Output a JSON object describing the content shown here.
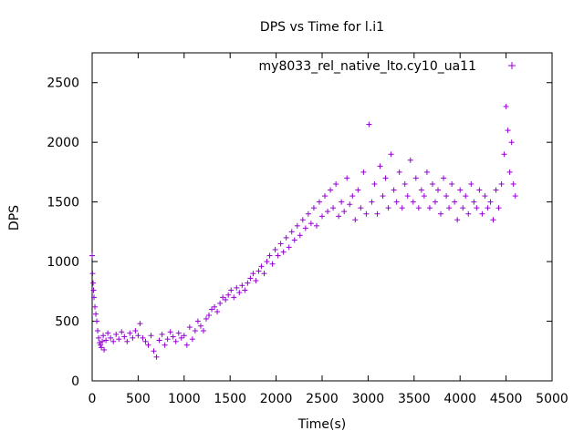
{
  "chart_data": {
    "type": "scatter",
    "title": "DPS vs Time for l.i1",
    "xlabel": "Time(s)",
    "ylabel": "DPS",
    "xlim": [
      0,
      5000
    ],
    "ylim": [
      0,
      2750
    ],
    "x_ticks": [
      0,
      500,
      1000,
      1500,
      2000,
      2500,
      3000,
      3500,
      4000,
      4500,
      5000
    ],
    "y_ticks": [
      0,
      500,
      1000,
      1500,
      2000,
      2500
    ],
    "x_tick_labels": [
      "0",
      "500",
      "1000",
      "1500",
      "2000",
      "2500",
      "3000",
      "3500",
      "4000",
      "4500",
      "5000"
    ],
    "y_tick_labels": [
      "0",
      "500",
      "1000",
      "1500",
      "2000",
      "2500"
    ],
    "grid": false,
    "legend_position": "top-right",
    "marker": "+",
    "series": [
      {
        "name": "my8033_rel_native_lto.cy10_ua11",
        "color": "#9400d3",
        "points": [
          [
            0,
            1050
          ],
          [
            5,
            900
          ],
          [
            10,
            820
          ],
          [
            15,
            760
          ],
          [
            20,
            700
          ],
          [
            30,
            620
          ],
          [
            40,
            560
          ],
          [
            50,
            500
          ],
          [
            60,
            420
          ],
          [
            70,
            360
          ],
          [
            80,
            320
          ],
          [
            90,
            300
          ],
          [
            100,
            280
          ],
          [
            110,
            330
          ],
          [
            120,
            380
          ],
          [
            130,
            260
          ],
          [
            150,
            340
          ],
          [
            170,
            400
          ],
          [
            200,
            360
          ],
          [
            230,
            330
          ],
          [
            260,
            390
          ],
          [
            290,
            350
          ],
          [
            320,
            410
          ],
          [
            350,
            370
          ],
          [
            380,
            330
          ],
          [
            410,
            400
          ],
          [
            440,
            360
          ],
          [
            470,
            420
          ],
          [
            500,
            380
          ],
          [
            520,
            480
          ],
          [
            550,
            360
          ],
          [
            580,
            330
          ],
          [
            610,
            300
          ],
          [
            640,
            380
          ],
          [
            670,
            250
          ],
          [
            700,
            200
          ],
          [
            730,
            340
          ],
          [
            760,
            390
          ],
          [
            790,
            300
          ],
          [
            820,
            350
          ],
          [
            850,
            410
          ],
          [
            880,
            370
          ],
          [
            910,
            330
          ],
          [
            940,
            400
          ],
          [
            970,
            360
          ],
          [
            1000,
            380
          ],
          [
            1030,
            300
          ],
          [
            1060,
            450
          ],
          [
            1090,
            350
          ],
          [
            1120,
            420
          ],
          [
            1150,
            500
          ],
          [
            1180,
            460
          ],
          [
            1210,
            420
          ],
          [
            1240,
            520
          ],
          [
            1270,
            550
          ],
          [
            1300,
            600
          ],
          [
            1330,
            620
          ],
          [
            1360,
            580
          ],
          [
            1390,
            650
          ],
          [
            1420,
            700
          ],
          [
            1450,
            680
          ],
          [
            1480,
            720
          ],
          [
            1510,
            760
          ],
          [
            1540,
            700
          ],
          [
            1570,
            780
          ],
          [
            1600,
            740
          ],
          [
            1630,
            800
          ],
          [
            1660,
            760
          ],
          [
            1690,
            820
          ],
          [
            1720,
            860
          ],
          [
            1750,
            900
          ],
          [
            1780,
            840
          ],
          [
            1810,
            920
          ],
          [
            1840,
            960
          ],
          [
            1870,
            900
          ],
          [
            1900,
            1000
          ],
          [
            1930,
            1050
          ],
          [
            1960,
            980
          ],
          [
            1990,
            1100
          ],
          [
            2020,
            1050
          ],
          [
            2050,
            1150
          ],
          [
            2080,
            1080
          ],
          [
            2110,
            1200
          ],
          [
            2140,
            1120
          ],
          [
            2170,
            1250
          ],
          [
            2200,
            1180
          ],
          [
            2230,
            1300
          ],
          [
            2260,
            1220
          ],
          [
            2290,
            1350
          ],
          [
            2320,
            1280
          ],
          [
            2350,
            1400
          ],
          [
            2380,
            1320
          ],
          [
            2410,
            1450
          ],
          [
            2440,
            1300
          ],
          [
            2470,
            1500
          ],
          [
            2500,
            1380
          ],
          [
            2530,
            1550
          ],
          [
            2560,
            1420
          ],
          [
            2590,
            1600
          ],
          [
            2620,
            1450
          ],
          [
            2650,
            1650
          ],
          [
            2680,
            1380
          ],
          [
            2710,
            1500
          ],
          [
            2740,
            1420
          ],
          [
            2770,
            1700
          ],
          [
            2800,
            1480
          ],
          [
            2830,
            1550
          ],
          [
            2860,
            1350
          ],
          [
            2890,
            1600
          ],
          [
            2920,
            1450
          ],
          [
            2950,
            1750
          ],
          [
            2980,
            1400
          ],
          [
            3010,
            2150
          ],
          [
            3040,
            1500
          ],
          [
            3070,
            1650
          ],
          [
            3100,
            1400
          ],
          [
            3130,
            1800
          ],
          [
            3160,
            1550
          ],
          [
            3190,
            1700
          ],
          [
            3220,
            1450
          ],
          [
            3250,
            1900
          ],
          [
            3280,
            1600
          ],
          [
            3310,
            1500
          ],
          [
            3340,
            1750
          ],
          [
            3370,
            1450
          ],
          [
            3400,
            1650
          ],
          [
            3430,
            1550
          ],
          [
            3460,
            1850
          ],
          [
            3490,
            1500
          ],
          [
            3520,
            1700
          ],
          [
            3550,
            1450
          ],
          [
            3580,
            1600
          ],
          [
            3610,
            1550
          ],
          [
            3640,
            1750
          ],
          [
            3670,
            1450
          ],
          [
            3700,
            1650
          ],
          [
            3730,
            1500
          ],
          [
            3760,
            1600
          ],
          [
            3790,
            1400
          ],
          [
            3820,
            1700
          ],
          [
            3850,
            1550
          ],
          [
            3880,
            1450
          ],
          [
            3910,
            1650
          ],
          [
            3940,
            1500
          ],
          [
            3970,
            1350
          ],
          [
            4000,
            1600
          ],
          [
            4030,
            1450
          ],
          [
            4060,
            1550
          ],
          [
            4090,
            1400
          ],
          [
            4120,
            1650
          ],
          [
            4150,
            1500
          ],
          [
            4180,
            1450
          ],
          [
            4210,
            1600
          ],
          [
            4240,
            1400
          ],
          [
            4270,
            1550
          ],
          [
            4300,
            1450
          ],
          [
            4330,
            1500
          ],
          [
            4360,
            1350
          ],
          [
            4390,
            1600
          ],
          [
            4420,
            1450
          ],
          [
            4450,
            1650
          ],
          [
            4480,
            1900
          ],
          [
            4500,
            2300
          ],
          [
            4520,
            2100
          ],
          [
            4540,
            1750
          ],
          [
            4560,
            2000
          ],
          [
            4580,
            1650
          ],
          [
            4600,
            1550
          ]
        ]
      }
    ]
  }
}
